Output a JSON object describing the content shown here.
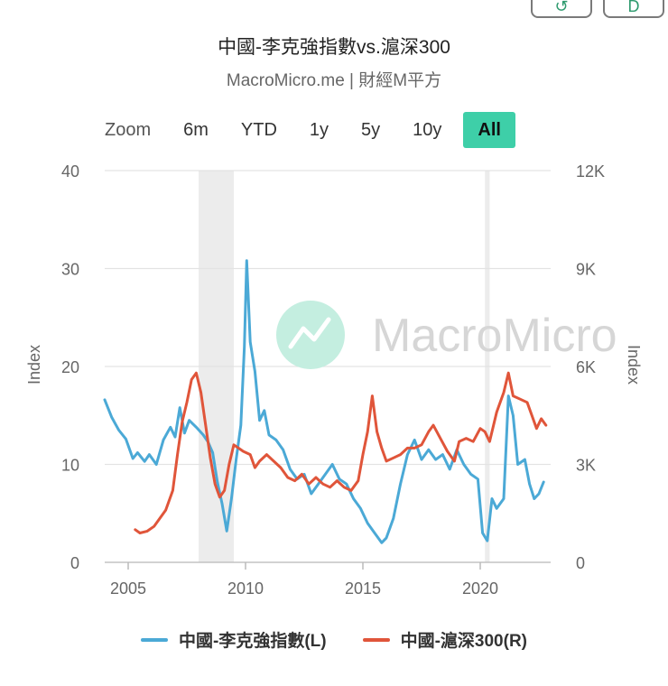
{
  "title": "中國-李克強指數vs.滬深300",
  "subtitle": "MacroMicro.me | 財經M平方",
  "watermark": "MacroMicro",
  "zoom": {
    "label": "Zoom",
    "buttons": [
      "6m",
      "YTD",
      "1y",
      "5y",
      "10y",
      "All"
    ],
    "active": "All"
  },
  "colors": {
    "left_series": "#4ba9d6",
    "right_series": "#e0553a",
    "recession": "#ececec",
    "grid": "#e3e3e3"
  },
  "chart_data": {
    "type": "line",
    "title": "中國-李克強指數vs.滬深300",
    "subtitle": "MacroMicro.me | 財經M平方",
    "xlabel": "",
    "x_ticks": [
      "2005",
      "2010",
      "2015",
      "2020"
    ],
    "y_left": {
      "label": "Index",
      "range": [
        0,
        40
      ],
      "ticks": [
        "0",
        "10",
        "20",
        "30",
        "40"
      ]
    },
    "y_right": {
      "label": "Index",
      "range": [
        0,
        12000
      ],
      "ticks": [
        "0",
        "3K",
        "6K",
        "9K",
        "12K"
      ]
    },
    "grid": true,
    "legend_position": "bottom",
    "shaded_periods": [
      [
        2008.0,
        2009.5
      ],
      [
        2020.2,
        2020.4
      ]
    ],
    "series": [
      {
        "name": "中國-李克強指數(L)",
        "axis": "left",
        "x": [
          2004.0,
          2004.3,
          2004.6,
          2004.9,
          2005.2,
          2005.4,
          2005.7,
          2005.9,
          2006.2,
          2006.5,
          2006.8,
          2007.0,
          2007.2,
          2007.4,
          2007.6,
          2007.9,
          2008.2,
          2008.4,
          2008.6,
          2008.8,
          2009.0,
          2009.2,
          2009.4,
          2009.6,
          2009.8,
          2009.95,
          2010.05,
          2010.2,
          2010.4,
          2010.6,
          2010.8,
          2011.0,
          2011.3,
          2011.6,
          2011.9,
          2012.2,
          2012.5,
          2012.8,
          2013.1,
          2013.4,
          2013.7,
          2014.0,
          2014.3,
          2014.6,
          2014.9,
          2015.2,
          2015.5,
          2015.8,
          2016.0,
          2016.3,
          2016.6,
          2016.9,
          2017.2,
          2017.5,
          2017.8,
          2018.1,
          2018.4,
          2018.7,
          2019.0,
          2019.3,
          2019.6,
          2019.9,
          2020.1,
          2020.3,
          2020.5,
          2020.7,
          2021.0,
          2021.2,
          2021.4,
          2021.6,
          2021.9,
          2022.1,
          2022.3,
          2022.5,
          2022.7
        ],
        "values": [
          16.6,
          14.8,
          13.5,
          12.6,
          10.6,
          11.2,
          10.3,
          11.0,
          10.0,
          12.5,
          13.8,
          12.8,
          15.8,
          13.2,
          14.5,
          13.8,
          13.0,
          12.3,
          11.2,
          8.2,
          6.0,
          3.2,
          6.5,
          10.5,
          14.0,
          22.0,
          30.8,
          22.5,
          19.5,
          14.5,
          15.5,
          13.0,
          12.5,
          11.5,
          9.5,
          8.5,
          9.0,
          7.0,
          8.0,
          9.0,
          10.0,
          8.5,
          8.0,
          6.5,
          5.5,
          4.0,
          3.0,
          2.0,
          2.5,
          4.5,
          8.0,
          11.0,
          12.5,
          10.5,
          11.5,
          10.5,
          11.0,
          9.5,
          11.5,
          10.0,
          9.0,
          8.5,
          3.0,
          2.2,
          6.5,
          5.5,
          6.5,
          17.0,
          15.0,
          10.0,
          10.5,
          8.0,
          6.5,
          7.0,
          8.2
        ]
      },
      {
        "name": "中國-滬深300(R)",
        "axis": "right",
        "x": [
          2005.3,
          2005.5,
          2005.8,
          2006.1,
          2006.4,
          2006.6,
          2006.9,
          2007.1,
          2007.3,
          2007.5,
          2007.7,
          2007.9,
          2008.1,
          2008.3,
          2008.5,
          2008.7,
          2008.9,
          2009.1,
          2009.3,
          2009.5,
          2009.7,
          2009.9,
          2010.2,
          2010.4,
          2010.6,
          2010.9,
          2011.2,
          2011.5,
          2011.8,
          2012.1,
          2012.4,
          2012.7,
          2013.0,
          2013.3,
          2013.6,
          2013.9,
          2014.2,
          2014.5,
          2014.8,
          2015.0,
          2015.2,
          2015.4,
          2015.6,
          2015.8,
          2016.0,
          2016.3,
          2016.6,
          2016.9,
          2017.2,
          2017.5,
          2017.8,
          2018.0,
          2018.3,
          2018.6,
          2018.9,
          2019.1,
          2019.4,
          2019.7,
          2020.0,
          2020.2,
          2020.4,
          2020.7,
          2021.0,
          2021.2,
          2021.4,
          2021.7,
          2022.0,
          2022.2,
          2022.4,
          2022.6,
          2022.8
        ],
        "values": [
          1000,
          900,
          950,
          1100,
          1400,
          1600,
          2200,
          3300,
          4300,
          4900,
          5600,
          5800,
          5200,
          4200,
          3200,
          2400,
          2000,
          2200,
          3000,
          3600,
          3500,
          3400,
          3300,
          2900,
          3100,
          3300,
          3100,
          2900,
          2600,
          2500,
          2700,
          2400,
          2600,
          2400,
          2300,
          2500,
          2300,
          2200,
          2500,
          3300,
          4000,
          5100,
          4000,
          3500,
          3100,
          3200,
          3300,
          3500,
          3500,
          3600,
          4000,
          4200,
          3800,
          3400,
          3100,
          3700,
          3800,
          3700,
          4100,
          4000,
          3700,
          4600,
          5200,
          5800,
          5100,
          5000,
          4900,
          4500,
          4100,
          4400,
          4200
        ]
      }
    ]
  }
}
